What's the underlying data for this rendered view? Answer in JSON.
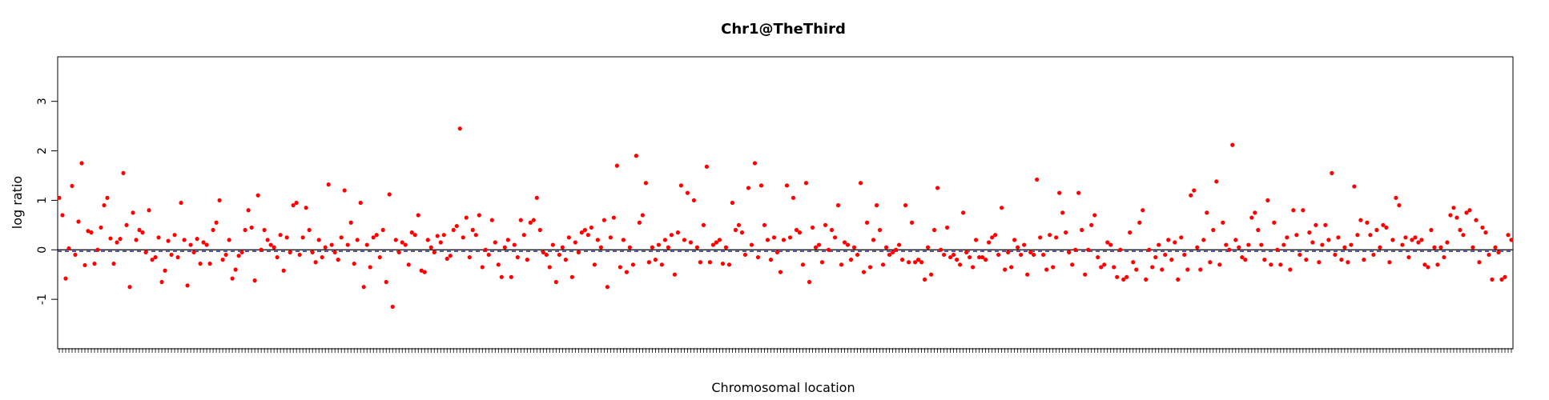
{
  "chart_data": {
    "type": "scatter",
    "title": "Chr1@TheThird",
    "xlabel": "Chromosomal location",
    "ylabel": "log ratio",
    "x_ticks": "unlabeled dense rug",
    "y_ticks": [
      -1,
      0,
      1,
      2,
      3
    ],
    "ylim": [
      -2.0,
      3.9
    ],
    "xlim": [
      0,
      600
    ],
    "grid": false,
    "legend": "none",
    "reference_lines": [
      {
        "value": 0,
        "style": "solid",
        "color": "#000000"
      },
      {
        "value": -0.03,
        "style": "dashed",
        "color": "#00008b"
      }
    ],
    "colors": {
      "points": "#ff0000",
      "axes": "#000000"
    },
    "series": [
      {
        "values": [
          1.05,
          0.7,
          -0.58,
          0.03,
          1.29,
          -0.1,
          0.57,
          1.75,
          -0.31,
          0.38,
          0.35,
          -0.28,
          0.0,
          0.45,
          0.9,
          1.05,
          0.23,
          -0.28,
          0.15,
          0.22,
          1.55,
          0.5,
          -0.75,
          0.75,
          0.2,
          0.4,
          0.35,
          -0.05,
          0.8,
          -0.2,
          -0.15,
          0.25,
          -0.65,
          -0.42,
          0.18,
          -0.1,
          0.3,
          -0.15,
          0.95,
          0.2,
          -0.72,
          0.1,
          -0.05,
          0.22,
          -0.28,
          0.15,
          0.1,
          -0.28,
          0.4,
          0.55,
          1.0,
          -0.2,
          -0.1,
          0.2,
          -0.58,
          -0.4,
          -0.12,
          -0.05,
          0.4,
          0.8,
          0.45,
          -0.62,
          1.1,
          0.0,
          0.4,
          0.2,
          0.1,
          0.05,
          -0.15,
          0.3,
          -0.42,
          0.25,
          -0.05,
          0.9,
          0.95,
          -0.1,
          0.25,
          0.85,
          0.4,
          -0.05,
          -0.25,
          0.2,
          -0.15,
          0.05,
          1.32,
          0.1,
          -0.05,
          -0.2,
          0.25,
          1.2,
          0.1,
          0.55,
          -0.28,
          0.2,
          0.95,
          -0.75,
          0.1,
          -0.35,
          0.25,
          0.3,
          -0.15,
          0.4,
          -0.65,
          1.12,
          -1.15,
          0.2,
          -0.05,
          0.15,
          0.1,
          -0.3,
          0.35,
          0.3,
          0.7,
          -0.42,
          -0.45,
          0.2,
          0.05,
          -0.05,
          0.28,
          0.15,
          0.3,
          -0.18,
          -0.12,
          0.4,
          0.48,
          2.45,
          0.25,
          0.65,
          -0.15,
          0.4,
          0.3,
          0.7,
          -0.35,
          0.0,
          -0.1,
          0.6,
          0.15,
          -0.3,
          -0.55,
          0.05,
          0.2,
          -0.55,
          0.1,
          -0.15,
          0.6,
          0.3,
          -0.2,
          0.55,
          0.6,
          1.05,
          0.4,
          -0.05,
          -0.1,
          -0.35,
          0.1,
          -0.65,
          -0.1,
          0.05,
          -0.2,
          0.25,
          -0.55,
          0.15,
          -0.05,
          0.35,
          0.4,
          0.3,
          0.45,
          -0.3,
          0.2,
          0.05,
          0.6,
          -0.75,
          0.25,
          0.65,
          1.7,
          -0.35,
          0.2,
          -0.45,
          0.05,
          -0.3,
          1.9,
          0.55,
          0.7,
          1.35,
          -0.25,
          0.05,
          -0.2,
          0.1,
          -0.3,
          0.2,
          0.05,
          0.3,
          -0.5,
          0.35,
          1.3,
          0.2,
          1.15,
          0.15,
          1.0,
          0.05,
          -0.25,
          0.5,
          1.68,
          -0.25,
          0.1,
          0.15,
          0.2,
          -0.28,
          0.05,
          -0.3,
          0.95,
          0.4,
          0.5,
          0.35,
          -0.1,
          1.25,
          0.1,
          1.75,
          -0.15,
          1.3,
          0.5,
          0.2,
          -0.2,
          0.25,
          -0.05,
          -0.45,
          0.2,
          1.3,
          0.25,
          1.05,
          0.4,
          0.35,
          -0.3,
          1.35,
          -0.65,
          0.45,
          0.05,
          0.1,
          -0.25,
          0.5,
          0.0,
          0.4,
          0.25,
          0.9,
          -0.3,
          0.15,
          0.1,
          -0.2,
          0.05,
          -0.1,
          1.35,
          -0.45,
          0.55,
          -0.35,
          0.2,
          0.9,
          0.4,
          -0.3,
          0.05,
          -0.1,
          -0.05,
          0.0,
          0.1,
          -0.2,
          0.9,
          -0.25,
          0.55,
          -0.25,
          -0.2,
          -0.25,
          -0.6,
          0.05,
          -0.5,
          0.4,
          1.25,
          0.0,
          -0.1,
          0.45,
          -0.15,
          -0.1,
          -0.2,
          -0.3,
          0.75,
          -0.05,
          -0.15,
          -0.35,
          0.2,
          -0.15,
          -0.15,
          -0.2,
          0.15,
          0.25,
          0.3,
          -0.1,
          0.85,
          -0.4,
          -0.05,
          -0.35,
          0.2,
          0.05,
          -0.1,
          0.1,
          -0.5,
          -0.05,
          -0.1,
          1.42,
          0.25,
          -0.1,
          -0.4,
          0.3,
          -0.35,
          0.25,
          1.15,
          0.75,
          0.35,
          -0.05,
          -0.3,
          0.0,
          1.15,
          0.4,
          -0.5,
          0.0,
          0.5,
          0.7,
          -0.15,
          -0.35,
          -0.3,
          0.15,
          0.1,
          -0.35,
          -0.55,
          0.0,
          -0.6,
          -0.55,
          0.35,
          -0.25,
          -0.4,
          0.55,
          0.8,
          -0.6,
          0.0,
          -0.35,
          -0.15,
          0.1,
          -0.4,
          -0.1,
          0.2,
          -0.2,
          0.15,
          -0.6,
          0.25,
          -0.1,
          -0.4,
          1.1,
          1.2,
          0.05,
          -0.4,
          0.2,
          0.75,
          -0.25,
          0.4,
          1.38,
          -0.3,
          0.55,
          0.1,
          0.0,
          2.12,
          0.2,
          0.05,
          -0.15,
          -0.2,
          0.1,
          0.65,
          0.75,
          0.4,
          0.1,
          -0.2,
          1.0,
          -0.3,
          0.55,
          0.0,
          -0.3,
          0.1,
          0.25,
          -0.4,
          0.8,
          0.3,
          -0.1,
          0.8,
          -0.2,
          0.35,
          0.15,
          0.5,
          -0.25,
          0.1,
          0.5,
          0.2,
          1.55,
          -0.1,
          0.25,
          -0.2,
          0.05,
          -0.25,
          0.1,
          1.28,
          0.3,
          0.6,
          -0.2,
          0.55,
          0.3,
          -0.1,
          0.4,
          0.05,
          0.5,
          0.45,
          -0.25,
          0.2,
          1.05,
          0.9,
          0.1,
          0.25,
          -0.15,
          0.2,
          0.25,
          0.15,
          0.2,
          -0.3,
          -0.35,
          0.4,
          0.05,
          -0.3,
          0.05,
          -0.15,
          0.15,
          0.7,
          0.85,
          0.65,
          0.4,
          0.3,
          0.75,
          0.8,
          0.05,
          0.6,
          -0.25,
          0.45,
          0.35,
          -0.1,
          -0.6,
          0.05,
          -0.05,
          -0.6,
          -0.55,
          0.3,
          0.2
        ]
      }
    ]
  }
}
